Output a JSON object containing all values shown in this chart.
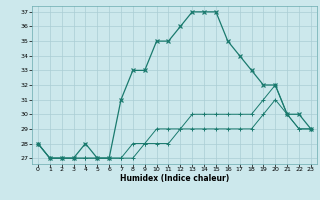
{
  "title": "",
  "xlabel": "Humidex (Indice chaleur)",
  "ylabel": "",
  "bg_color": "#cce8ec",
  "line_color": "#1a7a6e",
  "grid_color": "#aacdd4",
  "xlim": [
    -0.5,
    23.5
  ],
  "ylim": [
    26.6,
    37.4
  ],
  "xticks": [
    0,
    1,
    2,
    3,
    4,
    5,
    6,
    7,
    8,
    9,
    10,
    11,
    12,
    13,
    14,
    15,
    16,
    17,
    18,
    19,
    20,
    21,
    22,
    23
  ],
  "yticks": [
    27,
    28,
    29,
    30,
    31,
    32,
    33,
    34,
    35,
    36,
    37
  ],
  "line1_x": [
    0,
    1,
    2,
    3,
    4,
    5,
    6,
    7,
    8,
    9,
    10,
    11,
    12,
    13,
    14,
    15,
    16,
    17,
    18,
    19,
    20,
    21,
    22,
    23
  ],
  "line1_y": [
    28,
    27,
    27,
    27,
    28,
    27,
    27,
    31,
    33,
    33,
    35,
    35,
    36,
    37,
    37,
    37,
    35,
    34,
    33,
    32,
    32,
    30,
    30,
    29
  ],
  "line2_x": [
    0,
    1,
    2,
    3,
    4,
    5,
    6,
    7,
    8,
    9,
    10,
    11,
    12,
    13,
    14,
    15,
    16,
    17,
    18,
    19,
    20,
    21,
    22,
    23
  ],
  "line2_y": [
    28,
    27,
    27,
    27,
    27,
    27,
    27,
    27,
    28,
    28,
    29,
    29,
    29,
    30,
    30,
    30,
    30,
    30,
    30,
    31,
    32,
    30,
    29,
    29
  ],
  "line3_x": [
    0,
    1,
    2,
    3,
    4,
    5,
    6,
    7,
    8,
    9,
    10,
    11,
    12,
    13,
    14,
    15,
    16,
    17,
    18,
    19,
    20,
    21,
    22,
    23
  ],
  "line3_y": [
    28,
    27,
    27,
    27,
    27,
    27,
    27,
    27,
    27,
    28,
    28,
    28,
    29,
    29,
    29,
    29,
    29,
    29,
    29,
    30,
    31,
    30,
    29,
    29
  ]
}
